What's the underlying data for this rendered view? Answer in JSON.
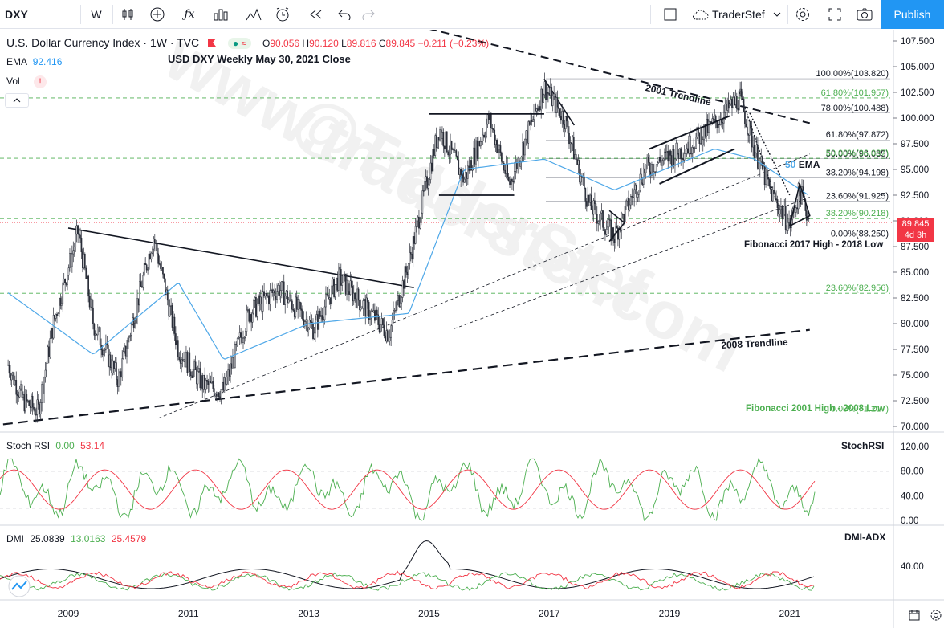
{
  "toolbar": {
    "symbol": "DXY",
    "interval": "W",
    "user": "TraderStef",
    "publish_label": "Publish",
    "icons": [
      "candles-icon",
      "indicators-icon",
      "fx-icon",
      "bars-icon",
      "templates-icon",
      "alert-icon",
      "replay-icon",
      "undo-icon",
      "redo-icon",
      "layout-icon",
      "cloud-icon",
      "settings-icon",
      "fullscreen-icon",
      "camera-icon"
    ]
  },
  "legend": {
    "title": "U.S. Dollar Currency Index · 1W · TVC",
    "o_label": "O",
    "o": "90.056",
    "h_label": "H",
    "h": "90.120",
    "l_label": "L",
    "l": "89.816",
    "c_label": "C",
    "c": "89.845",
    "change": "−0.211 (−0.23%)",
    "ema_label": "EMA",
    "ema": "92.416",
    "vol_label": "Vol",
    "subtitle": "USD DXY Weekly May 30, 2021 Close"
  },
  "price_tag": {
    "value": "89.845",
    "countdown": "4d 3h"
  },
  "annotations": {
    "t2001": "2001 Trendline",
    "t2008": "2008 Trendline",
    "ema50_num": "50",
    "ema50_txt": "EMA",
    "fib2017": "Fibonacci 2017 High - 2018 Low",
    "fib2001": "Fibonacci 2001 High - 2008 Low",
    "watermark1": "@TraderStef",
    "watermark2": "www.traderstef.com"
  },
  "fib_levels": [
    {
      "label": "100.00%(103.820)",
      "price": 103.82,
      "color": "#131722"
    },
    {
      "label": "78.00%(100.488)",
      "price": 100.488,
      "color": "#131722"
    },
    {
      "label": "61.80%(101.957)",
      "price": 101.957,
      "color": "#4caf50"
    },
    {
      "label": "61.80%(97.872)",
      "price": 97.872,
      "color": "#131722"
    },
    {
      "label": "50.00%(96.035)",
      "price": 96.035,
      "color": "#131722"
    },
    {
      "label": "50.00%(96.087)",
      "price": 96.087,
      "color": "#4caf50"
    },
    {
      "label": "38.20%(94.198)",
      "price": 94.198,
      "color": "#131722"
    },
    {
      "label": "23.60%(91.925)",
      "price": 91.925,
      "color": "#131722"
    },
    {
      "label": "38.20%(90.218)",
      "price": 90.218,
      "color": "#4caf50"
    },
    {
      "label": "0.00%(88.250)",
      "price": 88.25,
      "color": "#131722"
    },
    {
      "label": "23.60%(82.956)",
      "price": 82.956,
      "color": "#4caf50"
    },
    {
      "label": "0.00%(71.217)",
      "price": 71.217,
      "color": "#4caf50"
    }
  ],
  "stoch": {
    "label": "Stoch RSI",
    "k": "0.00",
    "d": "53.14",
    "tag": "StochRSI"
  },
  "dmi": {
    "label": "DMI",
    "adx": "25.0839",
    "pdi": "13.0163",
    "mdi": "25.4579",
    "tag": "DMI-ADX"
  },
  "chart_data": {
    "type": "line",
    "title": "U.S. Dollar Currency Index · 1W · TVC",
    "price_axis": {
      "ticks": [
        "107.500",
        "105.000",
        "102.500",
        "100.000",
        "97.500",
        "95.000",
        "92.500",
        "90.000",
        "87.500",
        "85.000",
        "82.500",
        "80.000",
        "77.500",
        "75.000",
        "72.500",
        "70.000"
      ],
      "ylim": [
        69.5,
        108.5
      ]
    },
    "stoch_axis": {
      "ticks": [
        "120.00",
        "80.00",
        "40.00",
        "0.00"
      ]
    },
    "dmi_axis": {
      "ticks": [
        "40.00"
      ]
    },
    "x_ticks": [
      "2009",
      "2011",
      "2013",
      "2015",
      "2017",
      "2019",
      "2021"
    ],
    "series": [
      {
        "x": [
          "2008-01",
          "2008-04",
          "2008-07",
          "2008-10",
          "2009-03",
          "2009-06",
          "2009-11",
          "2010-06",
          "2010-11",
          "2011-04",
          "2011-08",
          "2012-01",
          "2012-07",
          "2013-02",
          "2013-07",
          "2014-05",
          "2014-09",
          "2015-03",
          "2015-08",
          "2016-01",
          "2016-05",
          "2016-12",
          "2017-04",
          "2017-09",
          "2018-02",
          "2018-08",
          "2019-04",
          "2019-10",
          "2020-03",
          "2020-06",
          "2020-09",
          "2021-01",
          "2021-03",
          "2021-05"
        ],
        "values": [
          76,
          72.5,
          71.5,
          80,
          89,
          80,
          74.5,
          88.5,
          77.5,
          74,
          73.5,
          81,
          83.5,
          79.5,
          84.5,
          79,
          86,
          99,
          94,
          100,
          93.5,
          103,
          100,
          91.5,
          88.5,
          95,
          97,
          99.5,
          102,
          97,
          93,
          89.5,
          93,
          89.845
        ]
      },
      {
        "name": "EMA",
        "x": [
          "2008-01",
          "2009-06",
          "2010-11",
          "2011-08",
          "2013-01",
          "2014-09",
          "2015-08",
          "2016-12",
          "2018-02",
          "2019-10",
          "2020-06",
          "2021-05"
        ],
        "values": [
          83,
          77,
          84,
          76.5,
          80,
          81,
          95,
          96,
          93,
          97,
          96,
          92.416
        ]
      }
    ]
  }
}
